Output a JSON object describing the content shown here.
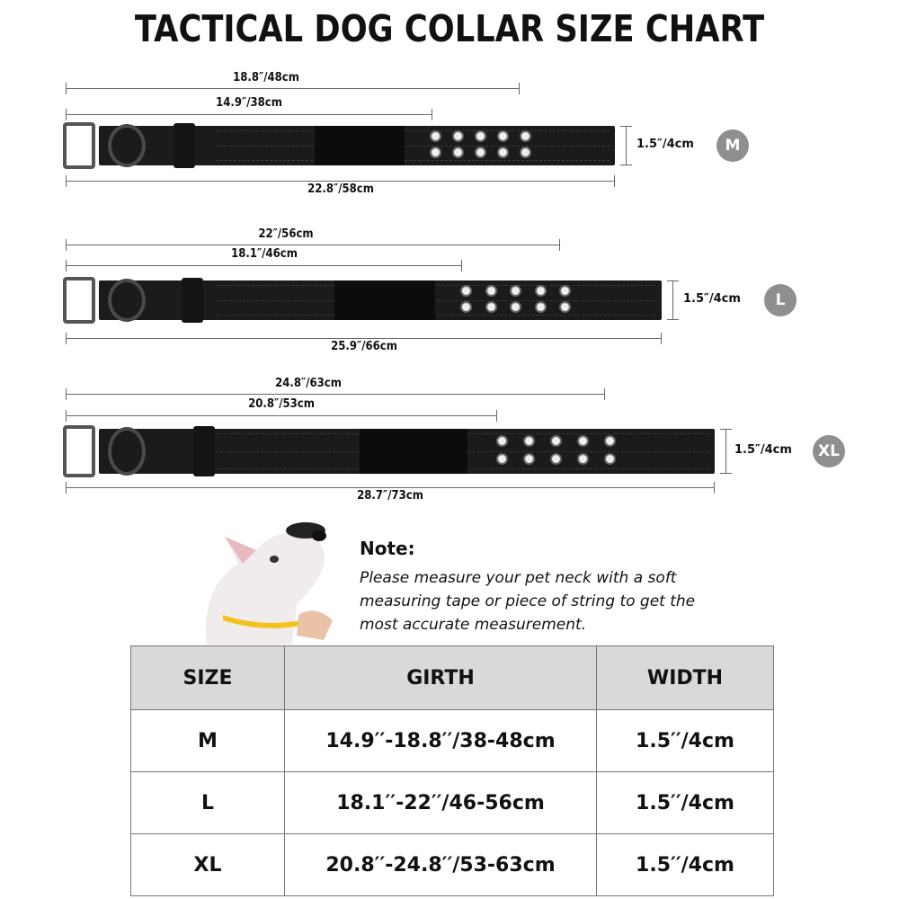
{
  "title": "TACTICAL DOG COLLAR SIZE CHART",
  "collars": [
    {
      "size": "M",
      "max_girth": "18.8″/48cm",
      "min_girth": "14.9″/38cm",
      "length": "22.8″/58cm",
      "width": "1.5″/4cm"
    },
    {
      "size": "L",
      "max_girth": "22″/56cm",
      "min_girth": "18.1″/46cm",
      "length": "25.9″/66cm",
      "width": "1.5″/4cm"
    },
    {
      "size": "XL",
      "max_girth": "24.8″/63cm",
      "min_girth": "20.8″/53cm",
      "length": "28.7″/73cm",
      "width": "1.5″/4cm"
    }
  ],
  "note": {
    "heading": "Note:",
    "body": "Please measure your pet neck with a soft measuring tape or piece of string to get the most accurate measurement."
  },
  "table": {
    "headers": [
      "SIZE",
      "GIRTH",
      "WIDTH"
    ],
    "rows": [
      [
        "M",
        "14.9′′-18.8′′/38-48cm",
        "1.5′′/4cm"
      ],
      [
        "L",
        "18.1′′-22′′/46-56cm",
        "1.5′′/4cm"
      ],
      [
        "XL",
        "20.8′′-24.8′′/53-63cm",
        "1.5′′/4cm"
      ]
    ]
  },
  "colors": {
    "collar": "#1b1b1b",
    "badge": "#8f8f8f",
    "header_bg": "#d9d9d9"
  }
}
